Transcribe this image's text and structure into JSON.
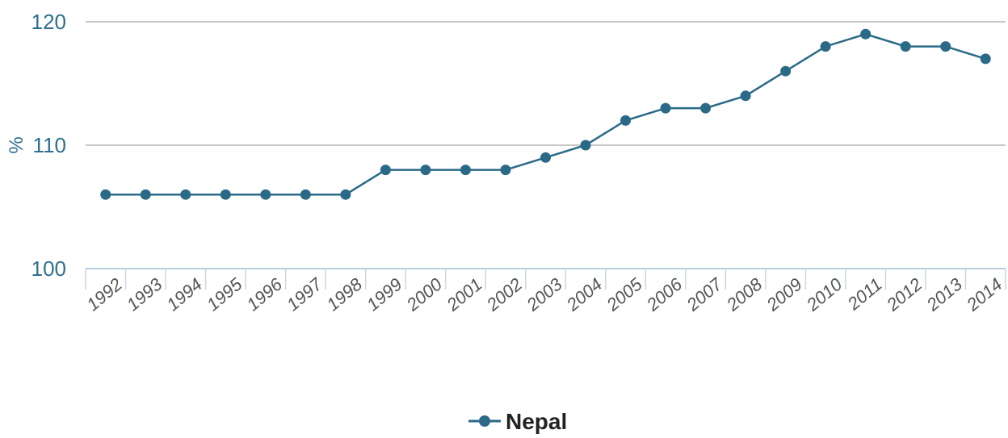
{
  "chart_data": {
    "type": "line",
    "ylabel": "%",
    "ylim": [
      100,
      120
    ],
    "yticks": [
      "100",
      "110",
      "120"
    ],
    "categories": [
      "1992",
      "1993",
      "1994",
      "1995",
      "1996",
      "1997",
      "1998",
      "1999",
      "2000",
      "2001",
      "2002",
      "2003",
      "2004",
      "2005",
      "2006",
      "2007",
      "2008",
      "2009",
      "2010",
      "2011",
      "2012",
      "2013",
      "2014"
    ],
    "series": [
      {
        "name": "Nepal",
        "color": "#2a6a87",
        "values": [
          106,
          106,
          106,
          106,
          106,
          106,
          106,
          108,
          108,
          108,
          108,
          109,
          110,
          112,
          113,
          113,
          114,
          116,
          118,
          119,
          118,
          118,
          117
        ]
      }
    ],
    "grid": true,
    "legend": "bottom-center"
  }
}
